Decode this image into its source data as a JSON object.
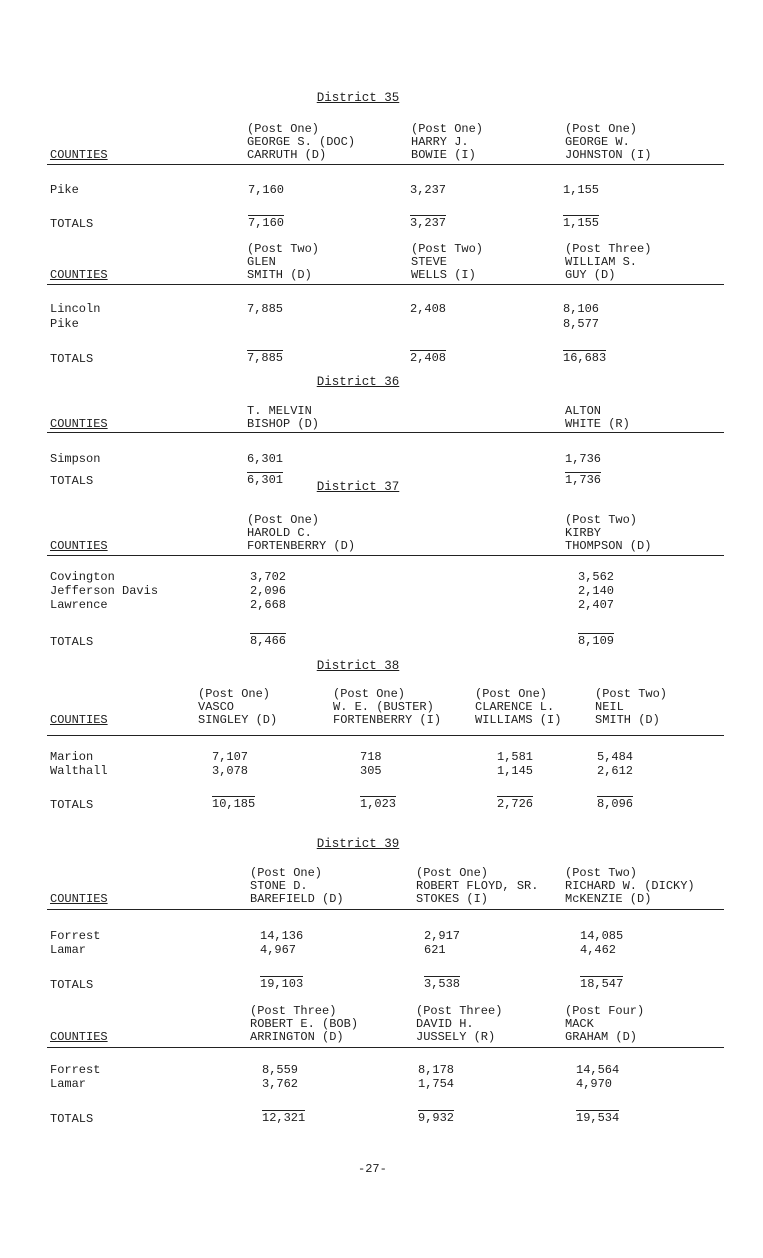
{
  "districts": [
    {
      "heading": "District 35",
      "tables": [
        {
          "counties_label": "COUNTIES",
          "totals_label": "TOTALS",
          "candidates": [
            {
              "post": "(Post One)",
              "name_lines": [
                "GEORGE S. (DOC)",
                "CARRUTH (D)"
              ]
            },
            {
              "post": "(Post One)",
              "name_lines": [
                "HARRY J.",
                "BOWIE (I)"
              ]
            },
            {
              "post": "(Post One)",
              "name_lines": [
                "GEORGE W.",
                "JOHNSTON (I)"
              ]
            }
          ],
          "rows": [
            {
              "county": "Pike",
              "values": [
                "7,160",
                "3,237",
                "1,155"
              ]
            }
          ],
          "totals": [
            "7,160",
            "3,237",
            "1,155"
          ]
        },
        {
          "counties_label": "COUNTIES",
          "totals_label": "TOTALS",
          "candidates": [
            {
              "post": "(Post Two)",
              "name_lines": [
                "GLEN",
                "SMITH (D)"
              ]
            },
            {
              "post": "(Post Two)",
              "name_lines": [
                "STEVE",
                "WELLS (I)"
              ]
            },
            {
              "post": "(Post Three)",
              "name_lines": [
                "WILLIAM S.",
                "GUY (D)"
              ]
            }
          ],
          "rows": [
            {
              "county": "Lincoln",
              "values": [
                "7,885",
                "2,408",
                "8,106"
              ]
            },
            {
              "county": "Pike",
              "values": [
                "",
                "",
                "8,577"
              ]
            }
          ],
          "totals": [
            "7,885",
            "2,408",
            "16,683"
          ]
        }
      ]
    },
    {
      "heading": "District 36",
      "tables": [
        {
          "counties_label": "COUNTIES",
          "totals_label": "TOTALS",
          "candidates": [
            {
              "post": "",
              "name_lines": [
                "T. MELVIN",
                "BISHOP (D)"
              ]
            },
            {
              "post": "",
              "name_lines": [
                "ALTON",
                "WHITE (R)"
              ]
            }
          ],
          "rows": [
            {
              "county": "Simpson",
              "values": [
                "6,301",
                "1,736"
              ]
            }
          ],
          "totals": [
            "6,301",
            "1,736"
          ]
        }
      ]
    },
    {
      "heading": "District 37",
      "tables": [
        {
          "counties_label": "COUNTIES",
          "totals_label": "TOTALS",
          "candidates": [
            {
              "post": "(Post One)",
              "name_lines": [
                "HAROLD C.",
                "FORTENBERRY (D)"
              ]
            },
            {
              "post": "(Post Two)",
              "name_lines": [
                "KIRBY",
                "THOMPSON (D)"
              ]
            }
          ],
          "rows": [
            {
              "county": "Covington",
              "values": [
                "3,702",
                "3,562"
              ]
            },
            {
              "county": "Jefferson Davis",
              "values": [
                "2,096",
                "2,140"
              ]
            },
            {
              "county": "Lawrence",
              "values": [
                "2,668",
                "2,407"
              ]
            }
          ],
          "totals": [
            "8,466",
            "8,109"
          ]
        }
      ]
    },
    {
      "heading": "District 38",
      "tables": [
        {
          "counties_label": "COUNTIES",
          "totals_label": "TOTALS",
          "candidates": [
            {
              "post": "(Post One)",
              "name_lines": [
                "VASCO",
                "SINGLEY (D)"
              ]
            },
            {
              "post": "(Post One)",
              "name_lines": [
                "W. E. (BUSTER)",
                "FORTENBERRY (I)"
              ]
            },
            {
              "post": "(Post One)",
              "name_lines": [
                "CLARENCE L.",
                "WILLIAMS (I)"
              ]
            },
            {
              "post": "(Post Two)",
              "name_lines": [
                "NEIL",
                "SMITH (D)"
              ]
            }
          ],
          "rows": [
            {
              "county": "Marion",
              "values": [
                "7,107",
                "718",
                "1,581",
                "5,484"
              ]
            },
            {
              "county": "Walthall",
              "values": [
                "3,078",
                "305",
                "1,145",
                "2,612"
              ]
            }
          ],
          "totals": [
            "10,185",
            "1,023",
            "2,726",
            "8,096"
          ]
        }
      ]
    },
    {
      "heading": "District 39",
      "tables": [
        {
          "counties_label": "COUNTIES",
          "totals_label": "TOTALS",
          "candidates": [
            {
              "post": "(Post One)",
              "name_lines": [
                "STONE D.",
                "BAREFIELD (D)"
              ]
            },
            {
              "post": "(Post One)",
              "name_lines": [
                "ROBERT FLOYD, SR.",
                "STOKES (I)"
              ]
            },
            {
              "post": "(Post Two)",
              "name_lines": [
                "RICHARD W. (DICKY)",
                "McKENZIE (D)"
              ]
            }
          ],
          "rows": [
            {
              "county": "Forrest",
              "values": [
                "14,136",
                "2,917",
                "14,085"
              ]
            },
            {
              "county": "Lamar",
              "values": [
                "4,967",
                "621",
                "4,462"
              ]
            }
          ],
          "totals": [
            "19,103",
            "3,538",
            "18,547"
          ]
        },
        {
          "counties_label": "COUNTIES",
          "totals_label": "TOTALS",
          "candidates": [
            {
              "post": "(Post Three)",
              "name_lines": [
                "ROBERT E. (BOB)",
                "ARRINGTON (D)"
              ]
            },
            {
              "post": "(Post Three)",
              "name_lines": [
                "DAVID H.",
                "JUSSELY (R)"
              ]
            },
            {
              "post": "(Post Four)",
              "name_lines": [
                "MACK",
                "GRAHAM (D)"
              ]
            }
          ],
          "rows": [
            {
              "county": "Forrest",
              "values": [
                "8,559",
                "8,178",
                "14,564"
              ]
            },
            {
              "county": "Lamar",
              "values": [
                "3,762",
                "1,754",
                "4,970"
              ]
            }
          ],
          "totals": [
            "12,321",
            "9,932",
            "19,534"
          ]
        }
      ]
    }
  ],
  "page_number": "-27-"
}
